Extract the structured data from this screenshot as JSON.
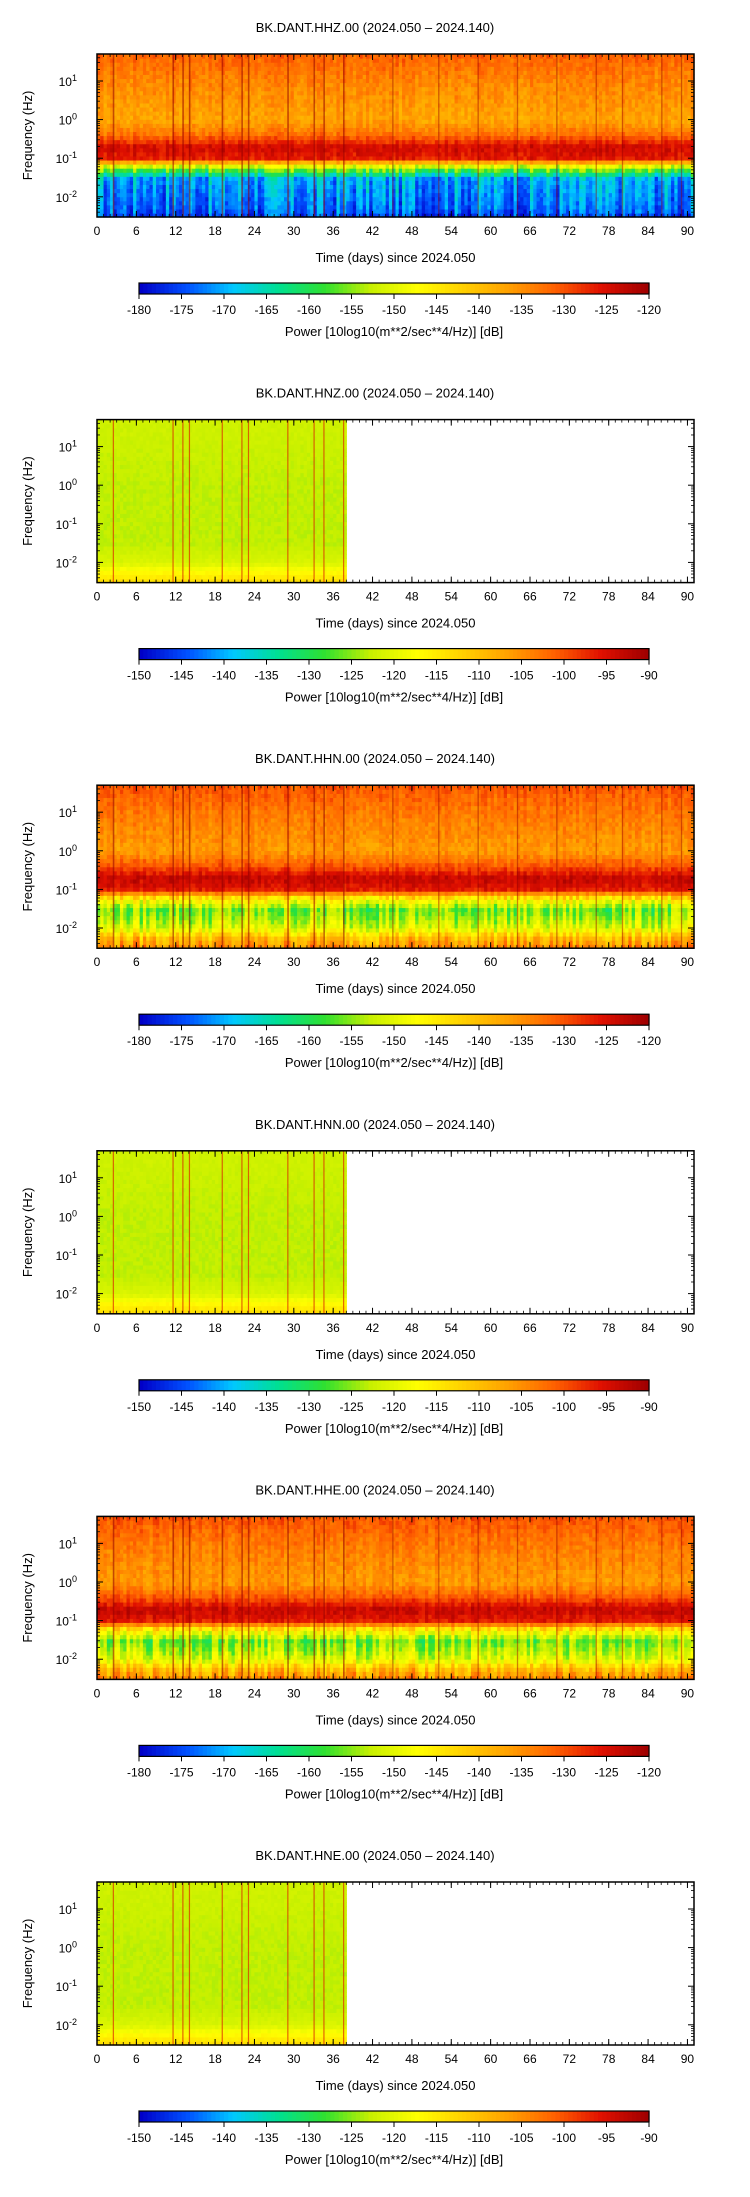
{
  "x_axis": {
    "label": "Time (days) since 2024.050",
    "ticks": [
      "0",
      "6",
      "12",
      "18",
      "24",
      "30",
      "36",
      "42",
      "48",
      "54",
      "60",
      "66",
      "72",
      "78",
      "84",
      "90"
    ],
    "range": [
      0,
      91
    ]
  },
  "y_axis": {
    "label": "Frequency (Hz)",
    "ticks": [
      {
        "base": "10",
        "exp": "1"
      },
      {
        "base": "10",
        "exp": "0"
      },
      {
        "base": "10",
        "exp": "-1"
      },
      {
        "base": "10",
        "exp": "-2"
      }
    ],
    "range_hz": [
      0.003,
      50
    ],
    "scale": "log"
  },
  "colorbar_label": "Power [10log10(m**2/sec**4/Hz)] [dB]",
  "colormap": [
    "#0000c8",
    "#0050ff",
    "#00c8ff",
    "#00e090",
    "#30e030",
    "#c8f000",
    "#ffff00",
    "#ffd000",
    "#ffa000",
    "#ff6000",
    "#e01000",
    "#a00000"
  ],
  "chart_data": [
    {
      "type": "heatmap",
      "title": "BK.DANT.HHZ.00 (2024.050 – 2024.140)",
      "data_end_day": 91,
      "colorbar": {
        "ticks": [
          "-180",
          "-175",
          "-170",
          "-165",
          "-160",
          "-155",
          "-150",
          "-145",
          "-140",
          "-135",
          "-130",
          "-125",
          "-120"
        ],
        "min": -180,
        "max": -120
      },
      "profile": [
        {
          "f": 0.003,
          "db": -176
        },
        {
          "f": 0.005,
          "db": -173
        },
        {
          "f": 0.01,
          "db": -172
        },
        {
          "f": 0.03,
          "db": -170
        },
        {
          "f": 0.06,
          "db": -152
        },
        {
          "f": 0.1,
          "db": -126
        },
        {
          "f": 0.2,
          "db": -124
        },
        {
          "f": 0.4,
          "db": -132
        },
        {
          "f": 1,
          "db": -137
        },
        {
          "f": 10,
          "db": -134
        },
        {
          "f": 50,
          "db": -131
        }
      ]
    },
    {
      "type": "heatmap",
      "title": "BK.DANT.HNZ.00 (2024.050 – 2024.140)",
      "data_end_day": 38,
      "colorbar": {
        "ticks": [
          "-150",
          "-145",
          "-140",
          "-135",
          "-130",
          "-125",
          "-120",
          "-115",
          "-110",
          "-105",
          "-100",
          "-95",
          "-90"
        ],
        "min": -150,
        "max": -90
      },
      "profile": [
        {
          "f": 0.003,
          "db": -113
        },
        {
          "f": 0.006,
          "db": -117
        },
        {
          "f": 0.01,
          "db": -121
        },
        {
          "f": 0.03,
          "db": -123
        },
        {
          "f": 1,
          "db": -123
        },
        {
          "f": 50,
          "db": -122
        }
      ]
    },
    {
      "type": "heatmap",
      "title": "BK.DANT.HHN.00 (2024.050 – 2024.140)",
      "data_end_day": 91,
      "colorbar": {
        "ticks": [
          "-180",
          "-175",
          "-170",
          "-165",
          "-160",
          "-155",
          "-150",
          "-145",
          "-140",
          "-135",
          "-130",
          "-125",
          "-120"
        ],
        "min": -180,
        "max": -120
      },
      "profile": [
        {
          "f": 0.003,
          "db": -134
        },
        {
          "f": 0.006,
          "db": -140
        },
        {
          "f": 0.01,
          "db": -150
        },
        {
          "f": 0.03,
          "db": -156
        },
        {
          "f": 0.06,
          "db": -145
        },
        {
          "f": 0.1,
          "db": -126
        },
        {
          "f": 0.2,
          "db": -123
        },
        {
          "f": 0.4,
          "db": -130
        },
        {
          "f": 1,
          "db": -136
        },
        {
          "f": 10,
          "db": -133
        },
        {
          "f": 50,
          "db": -130
        }
      ]
    },
    {
      "type": "heatmap",
      "title": "BK.DANT.HNN.00 (2024.050 – 2024.140)",
      "data_end_day": 38,
      "colorbar": {
        "ticks": [
          "-150",
          "-145",
          "-140",
          "-135",
          "-130",
          "-125",
          "-120",
          "-115",
          "-110",
          "-105",
          "-100",
          "-95",
          "-90"
        ],
        "min": -150,
        "max": -90
      },
      "profile": [
        {
          "f": 0.003,
          "db": -113
        },
        {
          "f": 0.006,
          "db": -117
        },
        {
          "f": 0.01,
          "db": -121
        },
        {
          "f": 0.03,
          "db": -123
        },
        {
          "f": 1,
          "db": -123
        },
        {
          "f": 50,
          "db": -122
        }
      ]
    },
    {
      "type": "heatmap",
      "title": "BK.DANT.HHE.00 (2024.050 – 2024.140)",
      "data_end_day": 91,
      "colorbar": {
        "ticks": [
          "-180",
          "-175",
          "-170",
          "-165",
          "-160",
          "-155",
          "-150",
          "-145",
          "-140",
          "-135",
          "-130",
          "-125",
          "-120"
        ],
        "min": -180,
        "max": -120
      },
      "profile": [
        {
          "f": 0.003,
          "db": -134
        },
        {
          "f": 0.006,
          "db": -140
        },
        {
          "f": 0.01,
          "db": -150
        },
        {
          "f": 0.03,
          "db": -156
        },
        {
          "f": 0.06,
          "db": -145
        },
        {
          "f": 0.1,
          "db": -126
        },
        {
          "f": 0.2,
          "db": -123
        },
        {
          "f": 0.4,
          "db": -130
        },
        {
          "f": 1,
          "db": -136
        },
        {
          "f": 10,
          "db": -133
        },
        {
          "f": 50,
          "db": -130
        }
      ]
    },
    {
      "type": "heatmap",
      "title": "BK.DANT.HNE.00 (2024.050 – 2024.140)",
      "data_end_day": 38,
      "colorbar": {
        "ticks": [
          "-150",
          "-145",
          "-140",
          "-135",
          "-130",
          "-125",
          "-120",
          "-115",
          "-110",
          "-105",
          "-100",
          "-95",
          "-90"
        ],
        "min": -150,
        "max": -90
      },
      "profile": [
        {
          "f": 0.003,
          "db": -113
        },
        {
          "f": 0.006,
          "db": -117
        },
        {
          "f": 0.01,
          "db": -121
        },
        {
          "f": 0.03,
          "db": -123
        },
        {
          "f": 1,
          "db": -123
        },
        {
          "f": 50,
          "db": -122
        }
      ]
    }
  ]
}
